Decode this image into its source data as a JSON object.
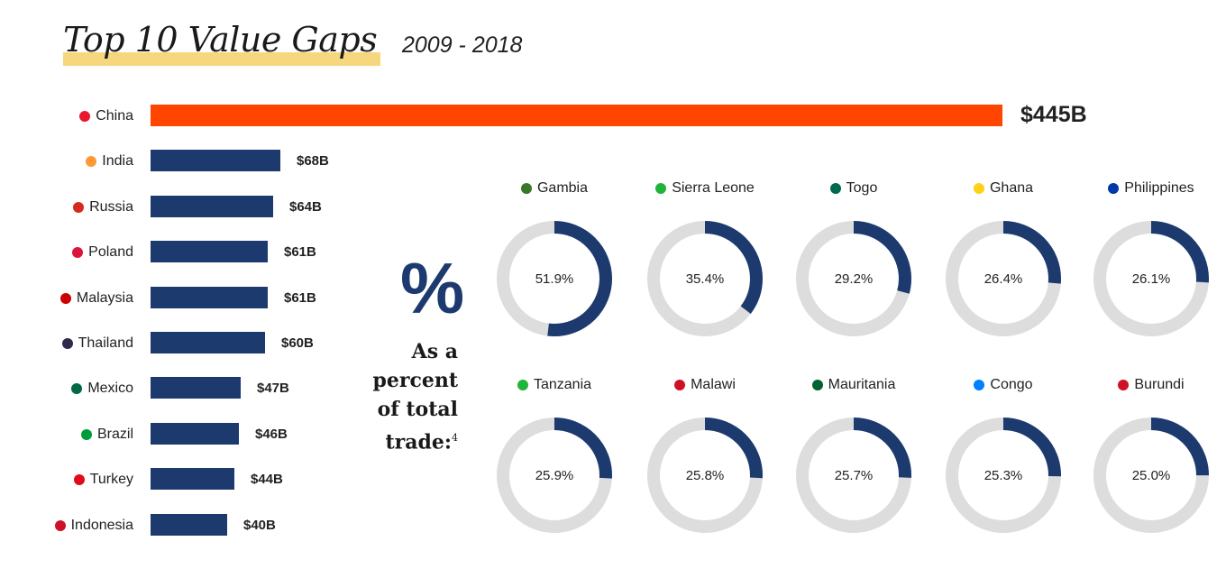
{
  "header": {
    "title": "Top 10 Value Gaps",
    "subtitle": "2009 - 2018"
  },
  "colors": {
    "highlight_bar": "#ff4500",
    "bar": "#1c3a6e",
    "donut_track": "#dddddd",
    "donut_fill": "#1c3a6e",
    "title_highlight": "#f6d77e"
  },
  "percent_panel": {
    "symbol": "%",
    "caption_lines": [
      "As a",
      "percent",
      "of total",
      "trade:"
    ],
    "footnote": "4"
  },
  "chart_data": [
    {
      "type": "bar",
      "orientation": "horizontal",
      "title": "Top 10 Value Gaps",
      "categories": [
        "China",
        "India",
        "Russia",
        "Poland",
        "Malaysia",
        "Thailand",
        "Mexico",
        "Brazil",
        "Turkey",
        "Indonesia"
      ],
      "values": [
        445,
        68,
        64,
        61,
        61,
        60,
        47,
        46,
        44,
        40
      ],
      "value_labels": [
        "$445B",
        "$68B",
        "$64B",
        "$61B",
        "$61B",
        "$60B",
        "$47B",
        "$46B",
        "$44B",
        "$40B"
      ],
      "flag_colors": [
        "#e8192c",
        "#ff9933",
        "#d52b1e",
        "#dc143c",
        "#cc0001",
        "#2d2a4a",
        "#006847",
        "#009c3b",
        "#e30a17",
        "#ce1126"
      ],
      "highlight": "China",
      "grid": false
    },
    {
      "type": "pie",
      "variant": "donut",
      "caption": "As a percent of total trade:",
      "categories": [
        "Gambia",
        "Sierra Leone",
        "Togo",
        "Ghana",
        "Philippines",
        "Tanzania",
        "Malawi",
        "Mauritania",
        "Congo",
        "Burundi"
      ],
      "values": [
        51.9,
        35.4,
        29.2,
        26.4,
        26.1,
        25.9,
        25.8,
        25.7,
        25.3,
        25.0
      ],
      "value_labels": [
        "51.9%",
        "35.4%",
        "29.2%",
        "26.4%",
        "26.1%",
        "25.9%",
        "25.8%",
        "25.7%",
        "25.3%",
        "25.0%"
      ],
      "flag_colors": [
        "#3a7728",
        "#1eb53a",
        "#006a4e",
        "#fcd116",
        "#0038a8",
        "#1eb53a",
        "#ce1126",
        "#006233",
        "#007fff",
        "#ce1126"
      ]
    }
  ]
}
